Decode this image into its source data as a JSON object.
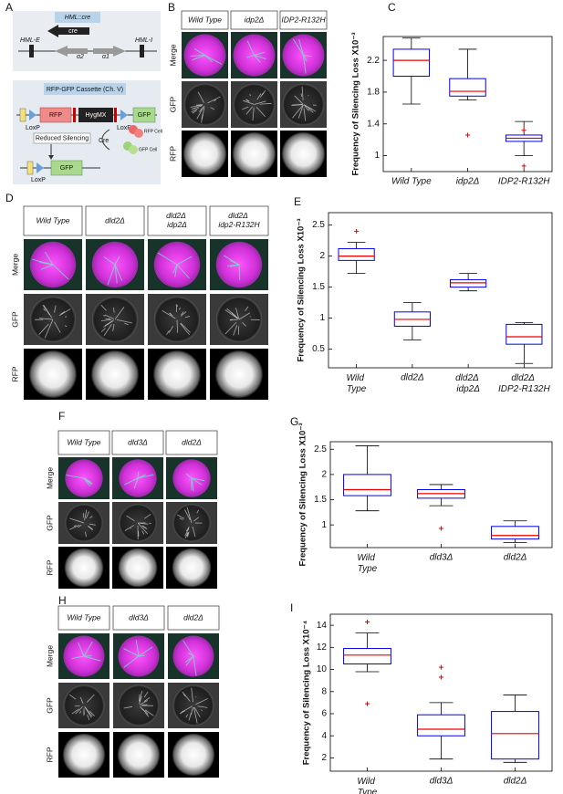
{
  "panel_labels": [
    "A",
    "B",
    "C",
    "D",
    "E",
    "F",
    "G",
    "H",
    "I"
  ],
  "diagram": {
    "hml_e": "HML-E",
    "hml_cre": "HML::cre",
    "cre": "cre",
    "alpha2": "α2",
    "alpha1": "α1",
    "hml_i": "HML-I",
    "cassette": "RFP-GFP Cassette (Ch. V)",
    "rfp": "RFP",
    "hygmx": "HygMX",
    "gfp": "GFP",
    "loxp_1": "LoxP",
    "loxp_2": "LoxP",
    "rfp_cell": "RFP Cell",
    "gfp_cell": "GFP Cell",
    "reduced": "Reduced Silencing",
    "cre_enzyme": "Cre",
    "gfp_2": "GFP",
    "loxp_3": "LoxP"
  },
  "micrographs": [
    {
      "columns": [
        "Wild Type",
        "idp2Δ",
        "IDP2-R132H"
      ],
      "rows": [
        "Merge",
        "GFP",
        "RFP"
      ]
    },
    {
      "columns": [
        "Wild Type",
        "dld2Δ",
        "dld2Δ idp2Δ",
        "dld2Δ idp2-R132H"
      ],
      "rows": [
        "Merge",
        "GFP",
        "RFP"
      ]
    },
    {
      "columns": [
        "Wild Type",
        "dld3Δ",
        "dld2Δ"
      ],
      "rows": [
        "Merge",
        "GFP",
        "RFP"
      ]
    },
    {
      "columns": [
        "Wild Type",
        "dld3Δ",
        "dld2Δ"
      ],
      "rows": [
        "Merge",
        "GFP",
        "RFP"
      ]
    }
  ],
  "chart_data": [
    {
      "type": "box",
      "ylabel": "Frequency of Silencing Loss X10⁻³",
      "categories": [
        "Wild Type",
        "idp2Δ",
        "IDP2-R132H"
      ],
      "wrap_labels": false,
      "boxes": [
        {
          "min": 1.65,
          "q1": 2.0,
          "median": 2.2,
          "q3": 2.34,
          "max": 2.48,
          "outliers": []
        },
        {
          "min": 1.7,
          "q1": 1.75,
          "median": 1.81,
          "q3": 1.97,
          "max": 2.34,
          "outliers": [
            1.26
          ]
        },
        {
          "min": 1.0,
          "q1": 1.18,
          "median": 1.22,
          "q3": 1.26,
          "max": 1.43,
          "outliers": [
            1.32,
            0.87
          ]
        }
      ],
      "ylim": [
        0.8,
        2.5
      ],
      "yticks": [
        1,
        1.4,
        1.8,
        2.2
      ],
      "box_color": "#0000ee",
      "median_color": "#ee0000",
      "whisker_color": "#000000",
      "outlier_color": "#ee0000"
    },
    {
      "type": "box",
      "ylabel": "Frequency of Silencing Loss X10⁻³",
      "categories": [
        "Wild Type",
        "dld2Δ",
        "dld2Δ idp2Δ",
        "dld2Δ IDP2-R132H"
      ],
      "wrap_labels": true,
      "boxes": [
        {
          "min": 1.72,
          "q1": 1.93,
          "median": 2.0,
          "q3": 2.12,
          "max": 2.22,
          "outliers": [
            2.4
          ]
        },
        {
          "min": 0.65,
          "q1": 0.87,
          "median": 0.98,
          "q3": 1.1,
          "max": 1.25,
          "outliers": []
        },
        {
          "min": 1.44,
          "q1": 1.5,
          "median": 1.57,
          "q3": 1.62,
          "max": 1.72,
          "outliers": []
        },
        {
          "min": 0.27,
          "q1": 0.58,
          "median": 0.7,
          "q3": 0.9,
          "max": 0.93,
          "outliers": []
        }
      ],
      "ylim": [
        0.2,
        2.7
      ],
      "yticks": [
        0.5,
        1,
        1.5,
        2,
        2.5
      ],
      "box_color": "#0000ee",
      "median_color": "#ee0000",
      "whisker_color": "#000000",
      "outlier_color": "#ee0000"
    },
    {
      "type": "box",
      "ylabel": "Frequency of Silencing Loss X10⁻³",
      "categories": [
        "Wild Type",
        "dld3Δ",
        "dld2Δ"
      ],
      "wrap_labels": true,
      "boxes": [
        {
          "min": 1.28,
          "q1": 1.58,
          "median": 1.7,
          "q3": 2.0,
          "max": 2.57,
          "outliers": []
        },
        {
          "min": 1.38,
          "q1": 1.53,
          "median": 1.62,
          "q3": 1.7,
          "max": 1.8,
          "outliers": [
            0.93
          ]
        },
        {
          "min": 0.65,
          "q1": 0.72,
          "median": 0.79,
          "q3": 0.97,
          "max": 1.08,
          "outliers": []
        }
      ],
      "ylim": [
        0.55,
        2.65
      ],
      "yticks": [
        1,
        1.5,
        2,
        2.5
      ],
      "box_color": "#0000ee",
      "median_color": "#ee0000",
      "whisker_color": "#000000",
      "outlier_color": "#ee0000"
    },
    {
      "type": "box",
      "ylabel": "Frequency of Silencing Loss X10⁻⁴",
      "categories": [
        "Wild Type",
        "dld3Δ",
        "dld2Δ"
      ],
      "wrap_labels": true,
      "boxes": [
        {
          "min": 9.8,
          "q1": 10.5,
          "median": 11.3,
          "q3": 11.9,
          "max": 13.3,
          "outliers": [
            14.3,
            6.9
          ]
        },
        {
          "min": 1.9,
          "q1": 4.0,
          "median": 4.6,
          "q3": 5.9,
          "max": 7.0,
          "outliers": [
            10.2,
            9.3
          ]
        },
        {
          "min": 1.6,
          "q1": 1.9,
          "median": 4.2,
          "q3": 6.2,
          "max": 7.7,
          "outliers": []
        }
      ],
      "ylim": [
        0.8,
        15
      ],
      "yticks": [
        2,
        4,
        6,
        8,
        10,
        12,
        14
      ],
      "box_color": "#0000ee",
      "median_color": "#ee0000",
      "whisker_color": "#000000",
      "outlier_color": "#ee0000"
    }
  ]
}
